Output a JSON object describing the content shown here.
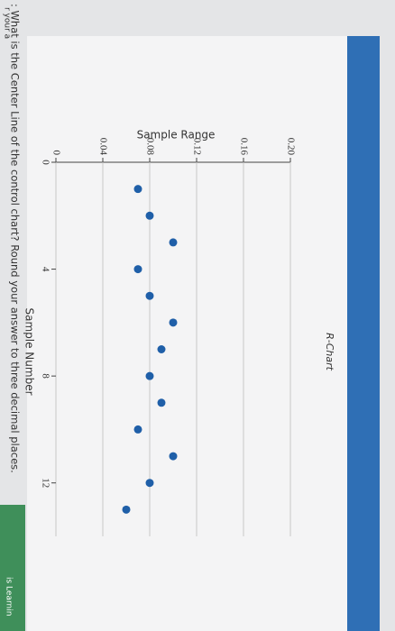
{
  "question": ": What is the Center Line of the control chart? Round your answer to three decimal places.",
  "side_text": "r your a",
  "footer_tab": "is Learnin",
  "chart_data": {
    "type": "scatter",
    "title": "R-Chart",
    "x_label": "Sample Number",
    "y_label": "Sample Range",
    "x": [
      1,
      2,
      3,
      4,
      5,
      6,
      7,
      8,
      9,
      10,
      11,
      12,
      13
    ],
    "series": [
      {
        "name": "Sample Range",
        "color": "#1f5fa8",
        "values": [
          0.07,
          0.08,
          0.1,
          0.07,
          0.08,
          0.1,
          0.09,
          0.08,
          0.09,
          0.07,
          0.1,
          0.08,
          0.06
        ]
      }
    ],
    "xlim": [
      0,
      14
    ],
    "xticks": [
      0,
      4,
      8,
      12
    ],
    "ylim": [
      0,
      0.2
    ],
    "yticks": [
      0,
      0.04,
      0.08,
      0.12,
      0.16,
      {
        "value": 0.2,
        "label": "0.20"
      }
    ],
    "grid": true
  }
}
